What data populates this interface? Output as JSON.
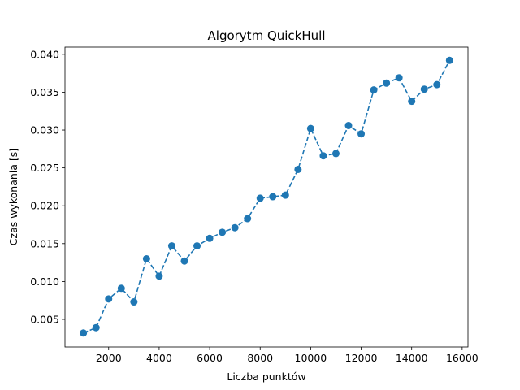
{
  "chart_data": {
    "type": "line",
    "title": "Algorytm QuickHull",
    "xlabel": "Liczba punktów",
    "ylabel": "Czas wykonania [s]",
    "xlim": [
      270,
      16230
    ],
    "ylim": [
      0.00135,
      0.04095
    ],
    "xticks": [
      2000,
      4000,
      6000,
      8000,
      10000,
      12000,
      14000,
      16000
    ],
    "xtick_labels": [
      "2000",
      "4000",
      "6000",
      "8000",
      "10000",
      "12000",
      "14000",
      "16000"
    ],
    "yticks": [
      0.005,
      0.01,
      0.015,
      0.02,
      0.025,
      0.03,
      0.035,
      0.04
    ],
    "ytick_labels": [
      "0.005",
      "0.010",
      "0.015",
      "0.020",
      "0.025",
      "0.030",
      "0.035",
      "0.040"
    ],
    "grid": false,
    "line_style": "dashed",
    "marker": "circle",
    "color": "#1f77b4",
    "series": [
      {
        "x": [
          1000,
          1500,
          2000,
          2500,
          3000,
          3500,
          4000,
          4500,
          5000,
          5500,
          6000,
          6500,
          7000,
          7500,
          8000,
          8500,
          9000,
          9500,
          10000,
          10500,
          11000,
          11500,
          12000,
          12500,
          13000,
          13500,
          14000,
          14500,
          15000,
          15500
        ],
        "values": [
          0.0032,
          0.0039,
          0.0077,
          0.0091,
          0.0073,
          0.013,
          0.0107,
          0.0147,
          0.0127,
          0.0147,
          0.0157,
          0.0165,
          0.0171,
          0.0183,
          0.021,
          0.0212,
          0.0214,
          0.0248,
          0.0302,
          0.0266,
          0.0269,
          0.0306,
          0.0295,
          0.0353,
          0.0362,
          0.0369,
          0.0338,
          0.0354,
          0.036,
          0.0392
        ]
      }
    ]
  }
}
